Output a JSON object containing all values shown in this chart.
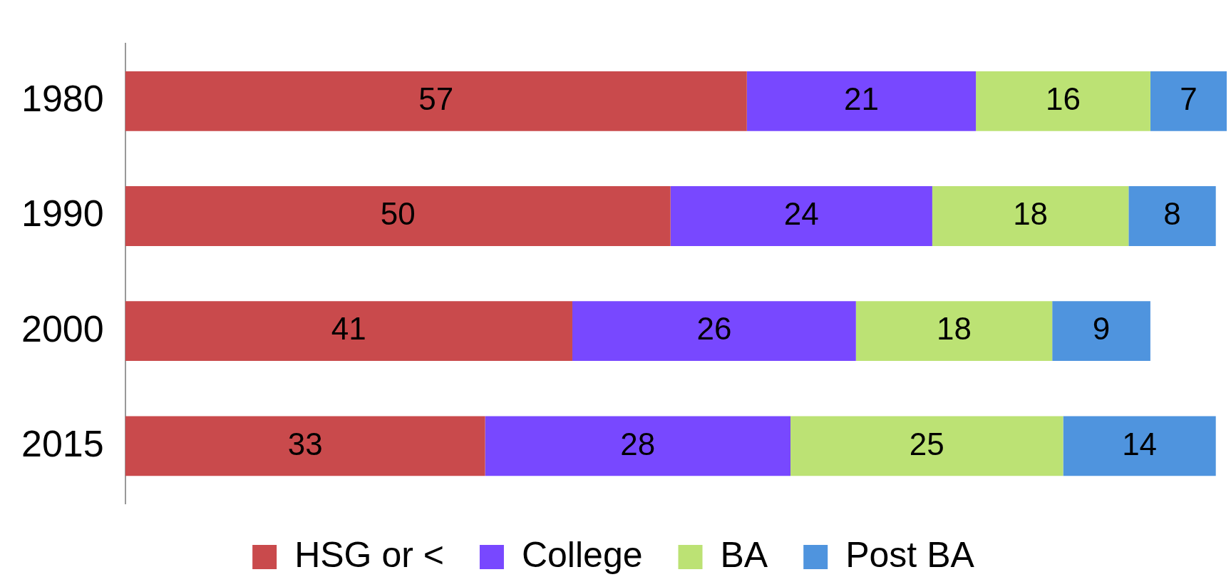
{
  "chart_data": {
    "type": "bar",
    "orientation": "horizontal",
    "stacked": true,
    "data_labels": true,
    "legend": "bottom",
    "categories": [
      "1980",
      "1990",
      "2000",
      "2015"
    ],
    "series": [
      {
        "name": "HSG or <",
        "color": "#c94a4c",
        "values": [
          57,
          50,
          41,
          33
        ]
      },
      {
        "name": "College",
        "color": "#7848ff",
        "values": [
          21,
          24,
          26,
          28
        ]
      },
      {
        "name": "BA",
        "color": "#bce274",
        "values": [
          16,
          18,
          18,
          25
        ]
      },
      {
        "name": "Post BA",
        "color": "#4f94de",
        "values": [
          7,
          8,
          9,
          14
        ]
      }
    ]
  }
}
